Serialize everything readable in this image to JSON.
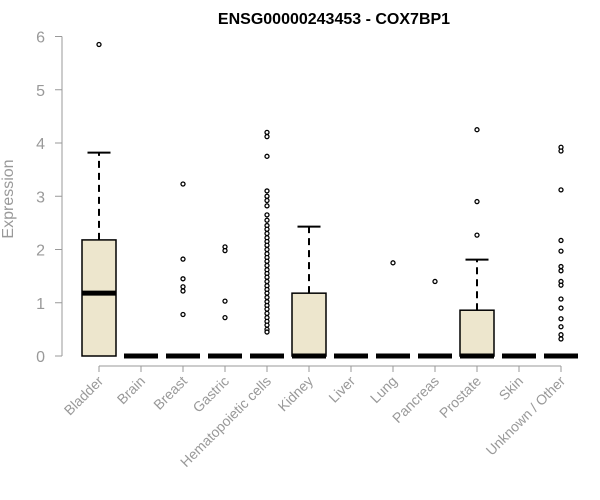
{
  "chart_data": {
    "type": "box",
    "title": "ENSG00000243453 - COX7BP1",
    "xlabel": "",
    "ylabel": "Expression",
    "ylim": [
      0,
      6
    ],
    "yticks": [
      0,
      1,
      2,
      3,
      4,
      5,
      6
    ],
    "grid": false,
    "colors": {
      "box_fill": "#ede6cd",
      "box_stroke": "#000000",
      "axis": "#999999",
      "title": "#000000"
    },
    "categories": [
      "Bladder",
      "Brain",
      "Breast",
      "Gastric",
      "Hematopoietic cells",
      "Kidney",
      "Liver",
      "Lung",
      "Pancreas",
      "Prostate",
      "Skin",
      "Unknown / Other"
    ],
    "boxes": [
      {
        "category": "Bladder",
        "q1": 0,
        "median": 1.18,
        "q3": 2.18,
        "whisker_low": 0,
        "whisker_high": 3.82,
        "outliers": [
          5.85
        ]
      },
      {
        "category": "Brain",
        "q1": 0,
        "median": 0,
        "q3": 0,
        "whisker_low": 0,
        "whisker_high": 0,
        "outliers": []
      },
      {
        "category": "Breast",
        "q1": 0,
        "median": 0,
        "q3": 0,
        "whisker_low": 0,
        "whisker_high": 0,
        "outliers": [
          3.23,
          1.82,
          1.45,
          1.3,
          1.22,
          0.78
        ]
      },
      {
        "category": "Gastric",
        "q1": 0,
        "median": 0,
        "q3": 0,
        "whisker_low": 0,
        "whisker_high": 0,
        "outliers": [
          2.05,
          1.98,
          1.03,
          0.72
        ]
      },
      {
        "category": "Hematopoietic cells",
        "q1": 0,
        "median": 0,
        "q3": 0,
        "whisker_low": 0,
        "whisker_high": 0,
        "outliers": [
          4.2,
          4.12,
          3.75,
          3.1,
          3.0,
          2.92,
          2.82,
          2.65,
          2.55,
          2.45,
          2.38,
          2.3,
          2.22,
          2.15,
          2.08,
          2.0,
          1.92,
          1.85,
          1.78,
          1.7,
          1.62,
          1.55,
          1.48,
          1.4,
          1.32,
          1.25,
          1.18,
          1.1,
          1.02,
          0.95,
          0.88,
          0.8,
          0.72,
          0.65,
          0.58,
          0.5,
          0.45
        ]
      },
      {
        "category": "Kidney",
        "q1": 0,
        "median": 0,
        "q3": 1.18,
        "whisker_low": 0,
        "whisker_high": 2.43,
        "outliers": []
      },
      {
        "category": "Liver",
        "q1": 0,
        "median": 0,
        "q3": 0,
        "whisker_low": 0,
        "whisker_high": 0,
        "outliers": []
      },
      {
        "category": "Lung",
        "q1": 0,
        "median": 0,
        "q3": 0,
        "whisker_low": 0,
        "whisker_high": 0,
        "outliers": [
          1.75
        ]
      },
      {
        "category": "Pancreas",
        "q1": 0,
        "median": 0,
        "q3": 0,
        "whisker_low": 0,
        "whisker_high": 0,
        "outliers": [
          1.4
        ]
      },
      {
        "category": "Prostate",
        "q1": 0,
        "median": 0,
        "q3": 0.86,
        "whisker_low": 0,
        "whisker_high": 1.81,
        "outliers": [
          4.25,
          2.9,
          2.27
        ]
      },
      {
        "category": "Skin",
        "q1": 0,
        "median": 0,
        "q3": 0,
        "whisker_low": 0,
        "whisker_high": 0,
        "outliers": []
      },
      {
        "category": "Unknown / Other",
        "q1": 0,
        "median": 0,
        "q3": 0,
        "whisker_low": 0,
        "whisker_high": 0,
        "outliers": [
          3.92,
          3.85,
          3.12,
          2.17,
          1.97,
          1.68,
          1.6,
          1.4,
          1.33,
          1.07,
          0.9,
          0.7,
          0.55,
          0.4,
          0.32
        ]
      }
    ]
  }
}
